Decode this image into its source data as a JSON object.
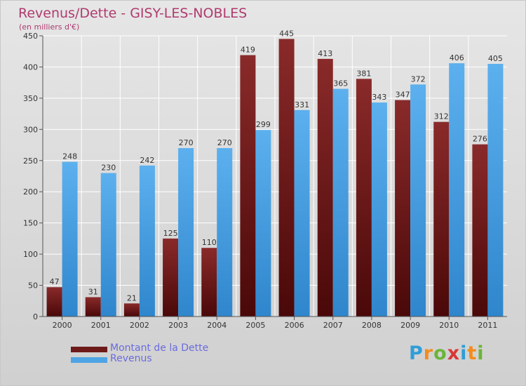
{
  "chart_data": {
    "type": "bar",
    "title": "Revenus/Dette - GISY-LES-NOBLES",
    "subtitle": "(en milliers d'€)",
    "categories": [
      "2000",
      "2001",
      "2002",
      "2003",
      "2004",
      "2005",
      "2006",
      "2007",
      "2008",
      "2009",
      "2010",
      "2011"
    ],
    "series": [
      {
        "name": "Montant de la Dette",
        "color": "#6e1a1a",
        "values": [
          47,
          31,
          21,
          125,
          110,
          419,
          445,
          413,
          381,
          347,
          312,
          276
        ]
      },
      {
        "name": "Revenus",
        "color": "#4ea4e4",
        "values": [
          248,
          230,
          242,
          270,
          270,
          299,
          331,
          365,
          343,
          372,
          406,
          405
        ]
      }
    ],
    "ylim": [
      0,
      450
    ],
    "yticks": [
      "0",
      "50",
      "100",
      "150",
      "200",
      "250",
      "300",
      "350",
      "400",
      "450"
    ],
    "grid": true,
    "legend_position": "bottom-left"
  },
  "logo": {
    "text": "Proxiti",
    "letters": [
      "P",
      "r",
      "o",
      "x",
      "i",
      "t",
      "i"
    ],
    "colors": [
      "#2e9ed8",
      "#f28c1e",
      "#6ab539",
      "#d93737",
      "#2e9ed8",
      "#f28c1e",
      "#6ab539"
    ]
  }
}
